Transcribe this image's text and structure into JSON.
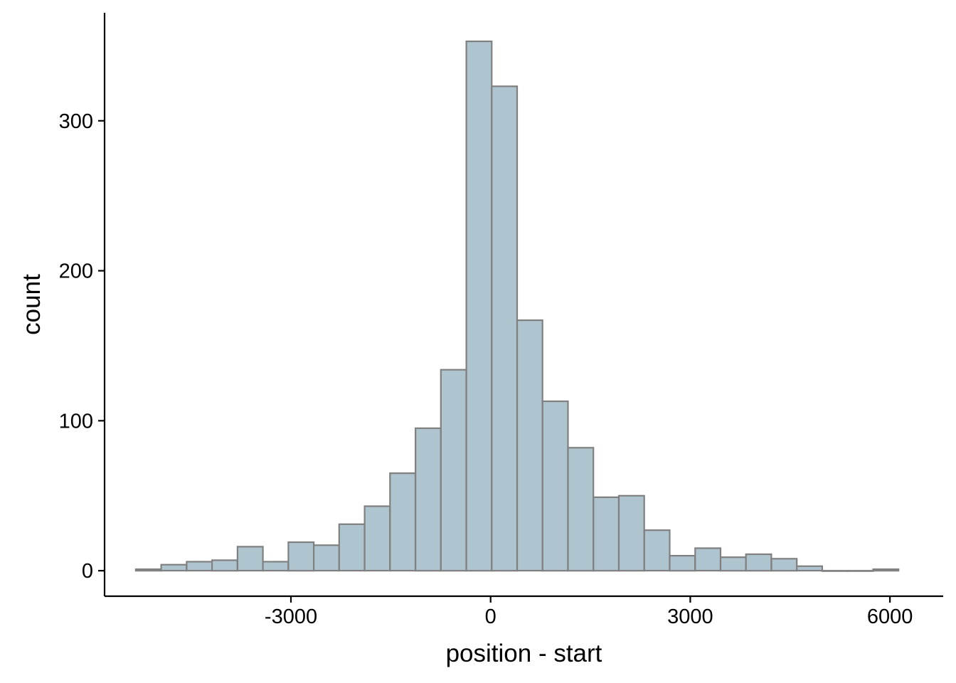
{
  "chart_data": {
    "type": "bar",
    "title": "",
    "xlabel": "position - start",
    "ylabel": "count",
    "bin_width": 382,
    "bin_centers": [
      -5140,
      -4758,
      -4376,
      -3994,
      -3612,
      -3230,
      -2848,
      -2466,
      -2084,
      -1702,
      -1320,
      -938,
      -556,
      -174,
      208,
      590,
      972,
      1354,
      1736,
      2118,
      2500,
      2882,
      3264,
      3646,
      4028,
      4410,
      4792,
      5174,
      5556,
      5938
    ],
    "values": [
      1,
      4,
      6,
      7,
      16,
      6,
      19,
      17,
      31,
      43,
      65,
      95,
      134,
      353,
      323,
      167,
      113,
      82,
      49,
      50,
      27,
      10,
      15,
      9,
      11,
      8,
      3,
      0,
      0,
      1
    ],
    "xlim": [
      -5800,
      6800
    ],
    "ylim": [
      -17,
      372
    ],
    "x_ticks": [
      -3000,
      0,
      3000,
      6000
    ],
    "x_tick_labels": [
      "-3000",
      "0",
      "3000",
      "6000"
    ],
    "y_ticks": [
      0,
      100,
      200,
      300
    ],
    "y_tick_labels": [
      "0",
      "100",
      "200",
      "300"
    ],
    "grid": false,
    "legend": "none",
    "colors": {
      "bar_fill": "#aec4ce",
      "bar_stroke": "#808080",
      "axis": "#000000"
    }
  }
}
